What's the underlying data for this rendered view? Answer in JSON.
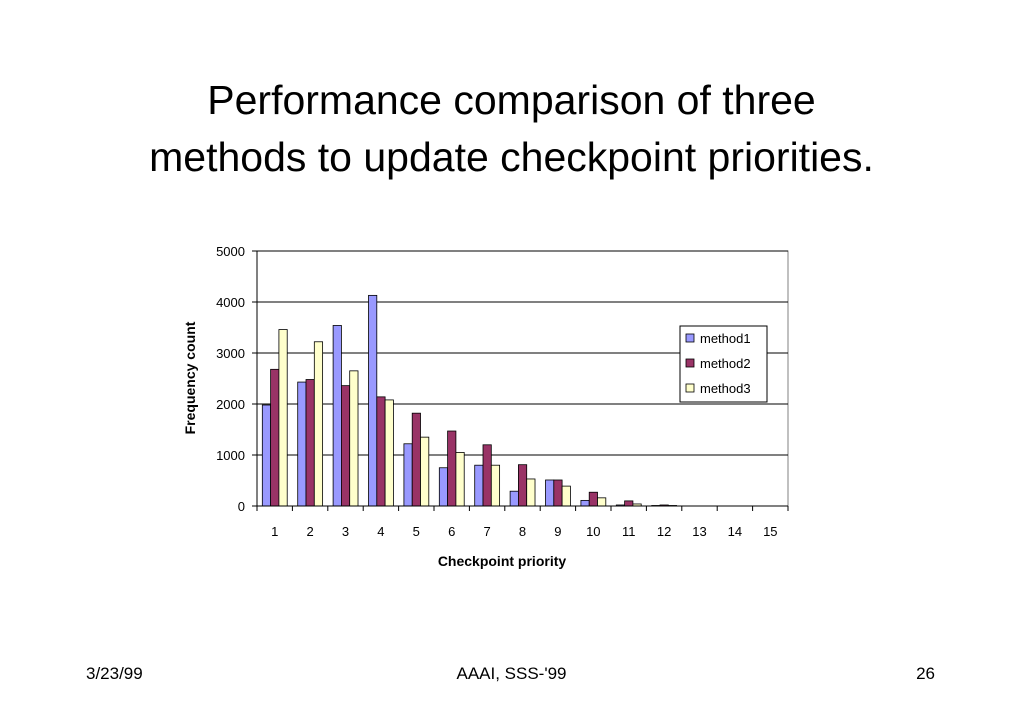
{
  "slide": {
    "title_line1": "Performance comparison of three",
    "title_line2": "methods to update checkpoint priorities.",
    "footer_left": "3/23/99",
    "footer_center": "AAAI, SSS-'99",
    "footer_right": "26"
  },
  "chart_data": {
    "type": "bar",
    "title": "",
    "xlabel": "Checkpoint priority",
    "ylabel": "Frequency count",
    "categories": [
      "1",
      "2",
      "3",
      "4",
      "5",
      "6",
      "7",
      "8",
      "9",
      "10",
      "11",
      "12",
      "13",
      "14",
      "15"
    ],
    "ylim": [
      0,
      5000
    ],
    "yticks": [
      0,
      1000,
      2000,
      3000,
      4000,
      5000
    ],
    "grid": true,
    "legend_position": "right",
    "series": [
      {
        "name": "method1",
        "color": "#9999ff",
        "values": [
          1980,
          2430,
          3540,
          4130,
          1220,
          750,
          800,
          290,
          510,
          110,
          20,
          10,
          0,
          0,
          0
        ]
      },
      {
        "name": "method2",
        "color": "#993366",
        "values": [
          2680,
          2480,
          2360,
          2140,
          1820,
          1470,
          1200,
          810,
          510,
          270,
          100,
          20,
          0,
          0,
          0
        ]
      },
      {
        "name": "method3",
        "color": "#ffffcc",
        "values": [
          3460,
          3220,
          2650,
          2080,
          1350,
          1050,
          800,
          530,
          390,
          160,
          40,
          10,
          0,
          0,
          0
        ]
      }
    ]
  }
}
